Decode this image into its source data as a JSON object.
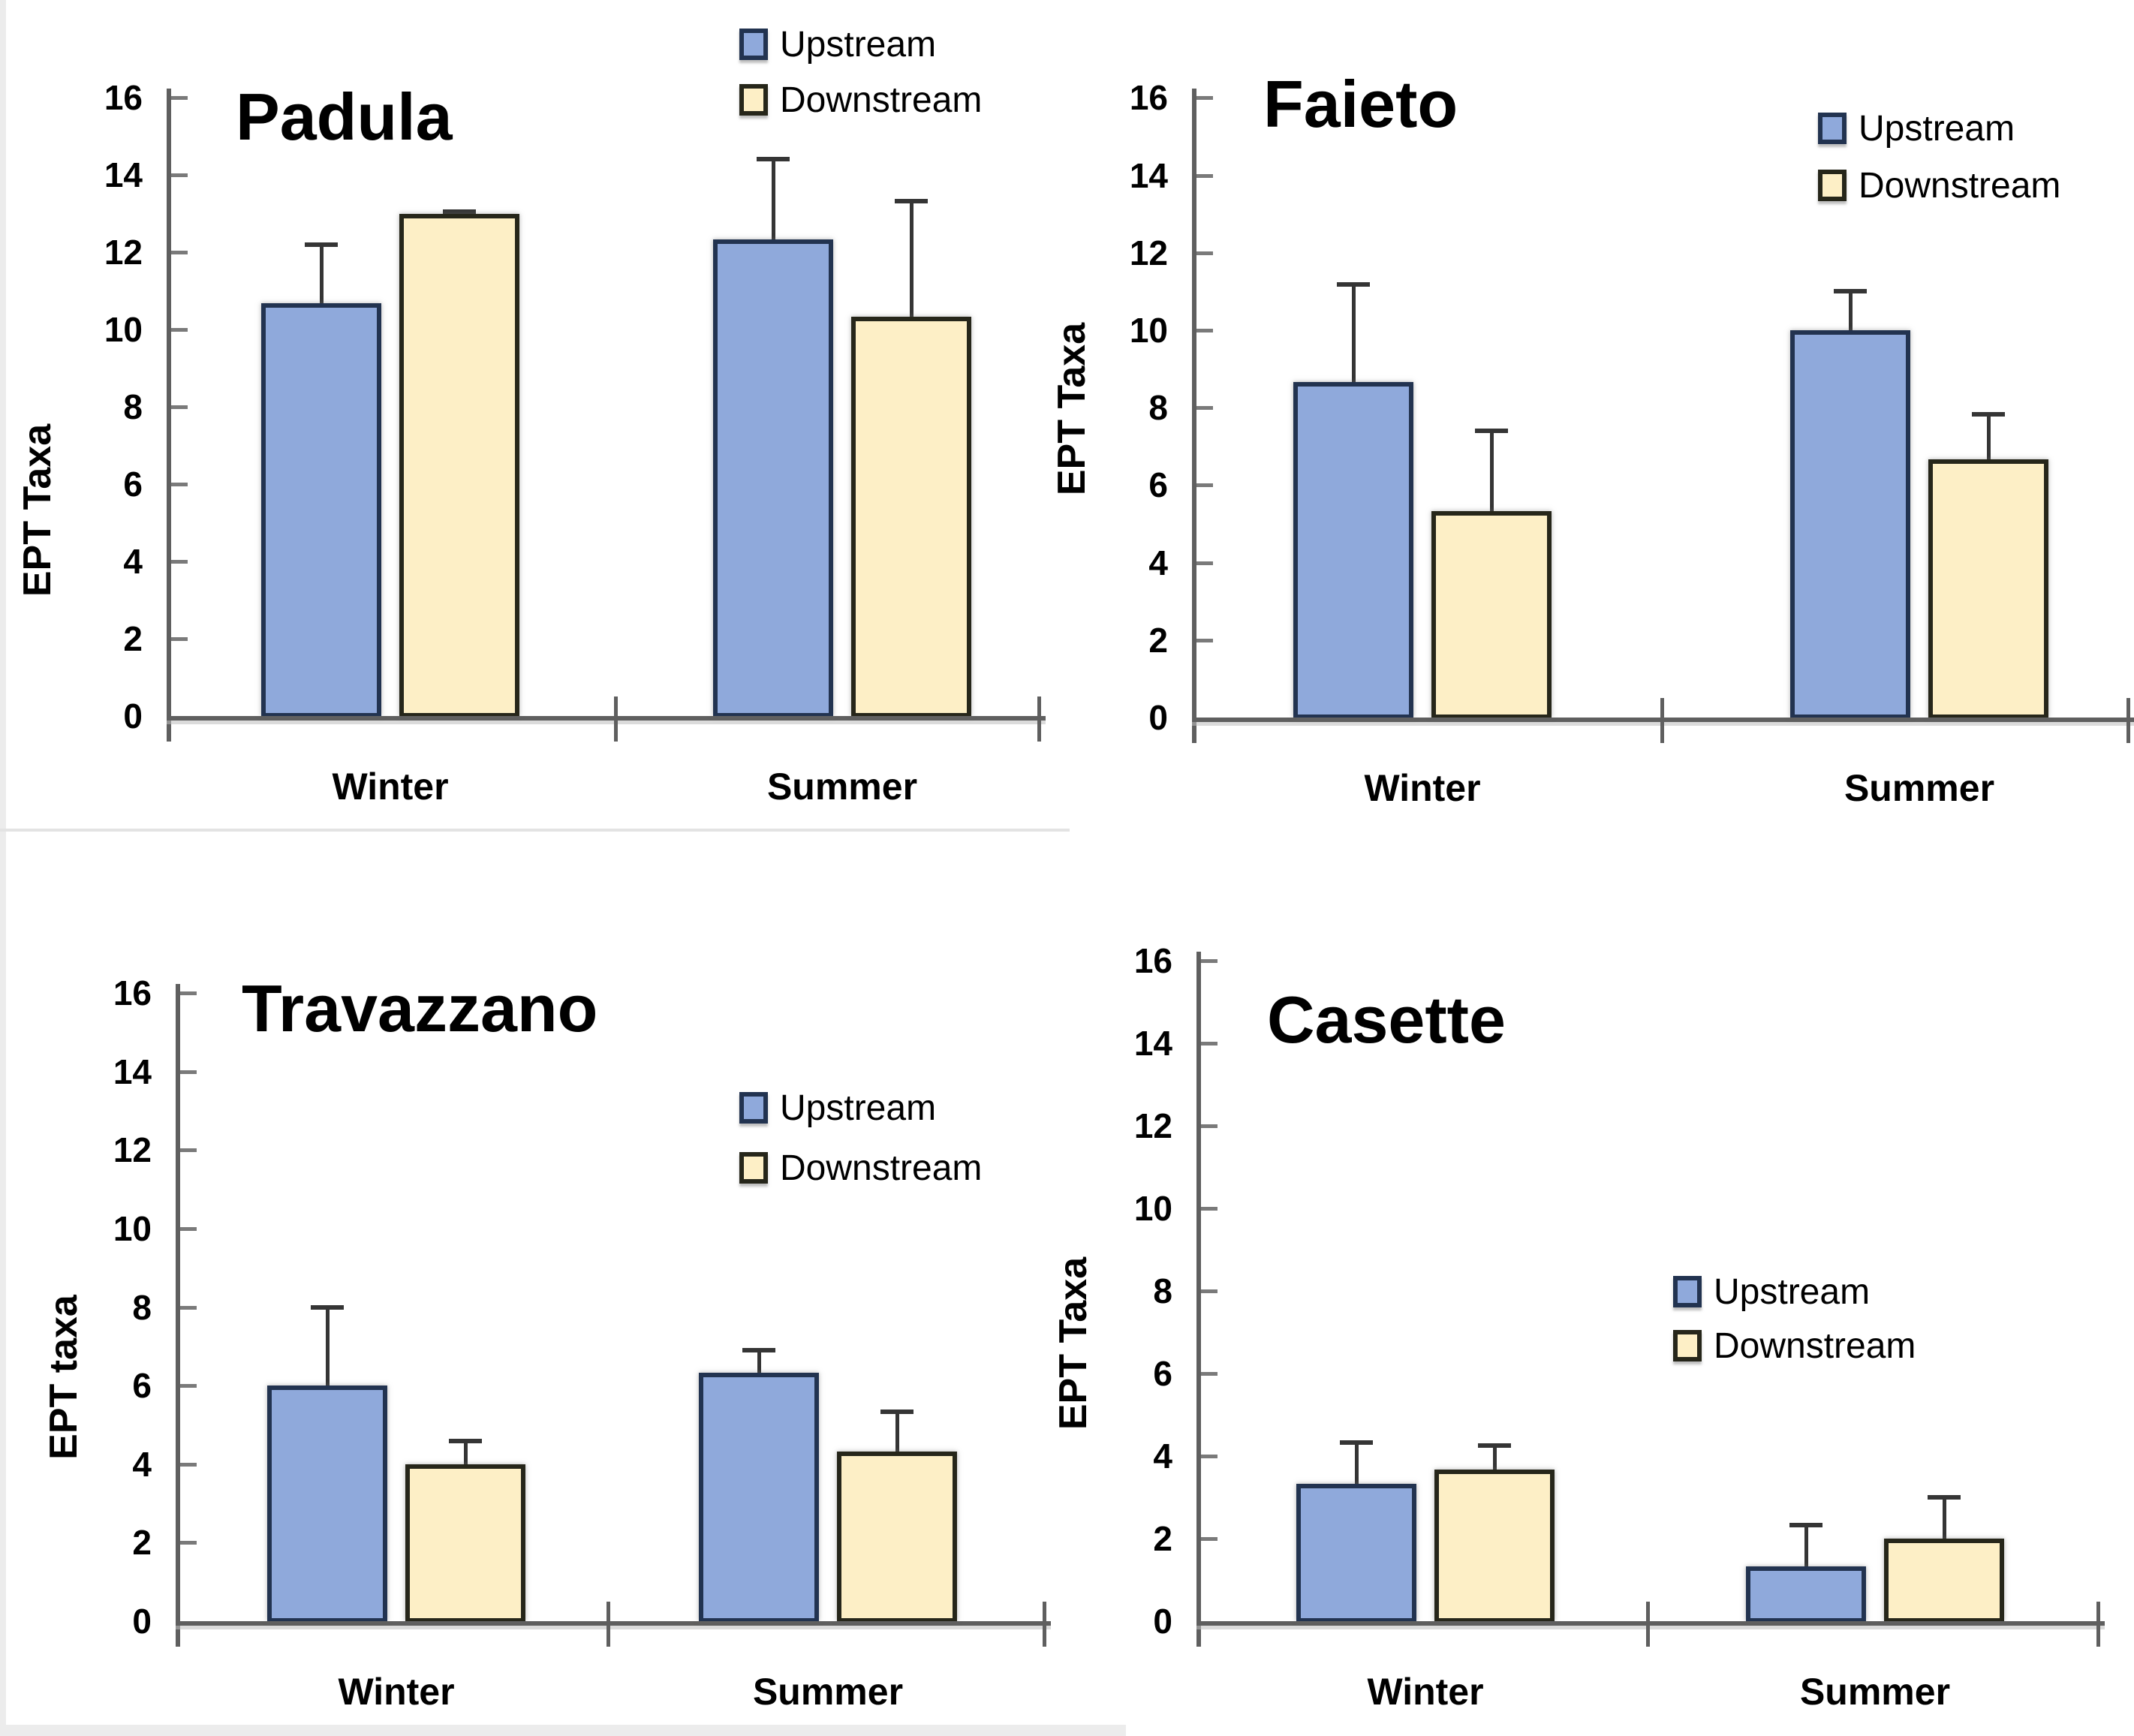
{
  "figure": {
    "background": "#ffffff",
    "axis_color": "#5f5f5f",
    "tick_color": "#7a7a7a",
    "error_bar_color": "#353535",
    "text_color": "#000000",
    "series_styles": {
      "Upstream": {
        "fill": "#8FA9DB",
        "border": "#223350"
      },
      "Downstream": {
        "fill": "#FDEFC6",
        "border": "#26261A"
      }
    }
  },
  "chart_data": [
    {
      "type": "bar",
      "title": "Padula",
      "ylabel": "EPT Taxa",
      "xlabel": "",
      "categories": [
        "Winter",
        "Summer"
      ],
      "series": [
        {
          "name": "Upstream",
          "values": [
            10.67,
            12.33
          ],
          "errors": [
            1.53,
            2.08
          ]
        },
        {
          "name": "Downstream",
          "values": [
            13.0,
            10.33
          ],
          "errors": [
            0.05,
            3.0
          ]
        }
      ],
      "ylim": [
        0,
        16
      ],
      "yticks": [
        0,
        2,
        4,
        6,
        8,
        10,
        12,
        14,
        16
      ],
      "grid": false,
      "legend_position": "top-center"
    },
    {
      "type": "bar",
      "title": "Faieto",
      "ylabel": "EPT Taxa",
      "xlabel": "",
      "categories": [
        "Winter",
        "Summer"
      ],
      "series": [
        {
          "name": "Upstream",
          "values": [
            8.67,
            10.0
          ],
          "errors": [
            2.52,
            1.0
          ]
        },
        {
          "name": "Downstream",
          "values": [
            5.33,
            6.67
          ],
          "errors": [
            2.08,
            1.15
          ]
        }
      ],
      "ylim": [
        0,
        16
      ],
      "yticks": [
        0,
        2,
        4,
        6,
        8,
        10,
        12,
        14,
        16
      ],
      "grid": false,
      "legend_position": "upper-right"
    },
    {
      "type": "bar",
      "title": "Travazzano",
      "ylabel": "EPT taxa",
      "xlabel": "",
      "categories": [
        "Winter",
        "Summer"
      ],
      "series": [
        {
          "name": "Upstream",
          "values": [
            6.0,
            6.33
          ],
          "errors": [
            2.0,
            0.58
          ]
        },
        {
          "name": "Downstream",
          "values": [
            4.0,
            4.33
          ],
          "errors": [
            0.58,
            1.0
          ]
        }
      ],
      "ylim": [
        0,
        16
      ],
      "yticks": [
        0,
        2,
        4,
        6,
        8,
        10,
        12,
        14,
        16
      ],
      "grid": false,
      "legend_position": "middle-right"
    },
    {
      "type": "bar",
      "title": "Casette",
      "ylabel": "EPT Taxa",
      "xlabel": "",
      "categories": [
        "Winter",
        "Summer"
      ],
      "series": [
        {
          "name": "Upstream",
          "values": [
            3.33,
            1.33
          ],
          "errors": [
            1.0,
            1.0
          ]
        },
        {
          "name": "Downstream",
          "values": [
            3.67,
            2.0
          ],
          "errors": [
            0.58,
            1.0
          ]
        }
      ],
      "ylim": [
        0,
        16
      ],
      "yticks": [
        0,
        2,
        4,
        6,
        8,
        10,
        12,
        14,
        16
      ],
      "grid": false,
      "legend_position": "middle-right"
    }
  ]
}
